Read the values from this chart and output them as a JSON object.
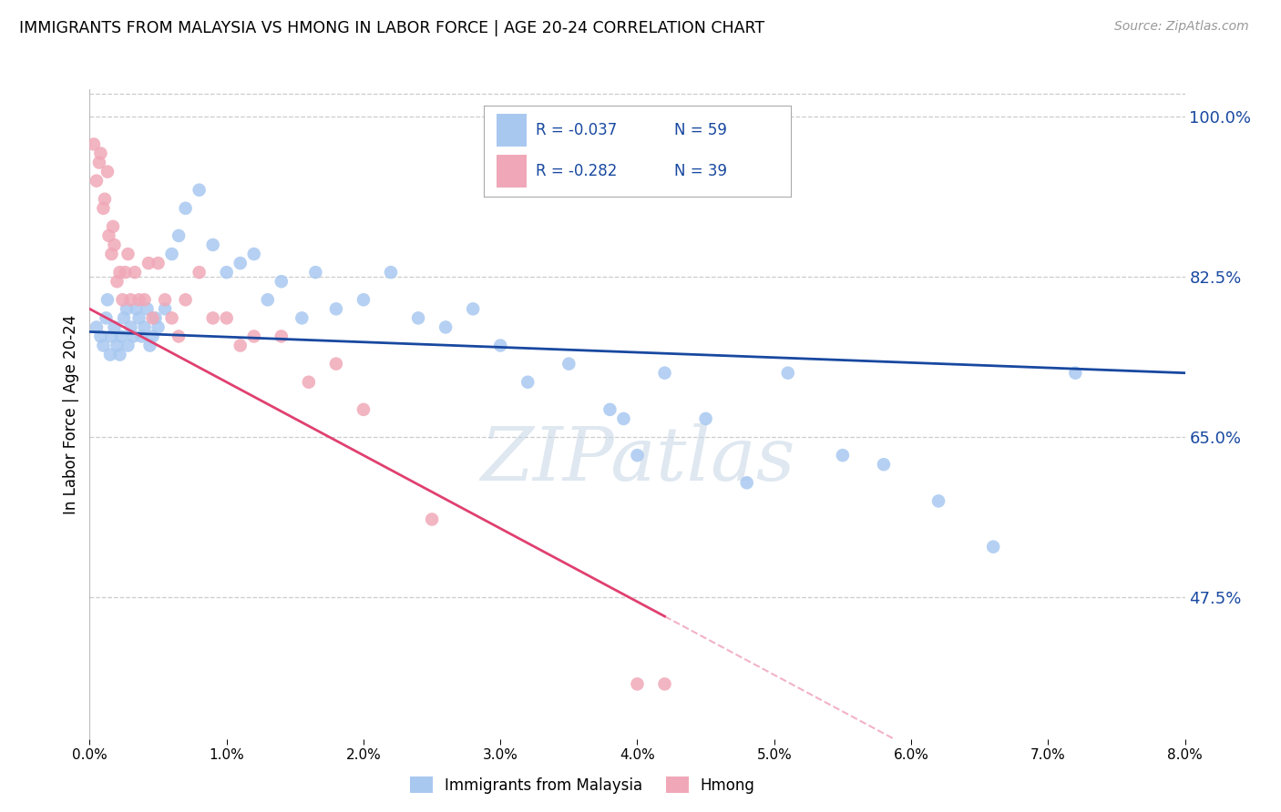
{
  "title": "IMMIGRANTS FROM MALAYSIA VS HMONG IN LABOR FORCE | AGE 20-24 CORRELATION CHART",
  "source": "Source: ZipAtlas.com",
  "ylabel": "In Labor Force | Age 20-24",
  "xmin": 0.0,
  "xmax": 8.0,
  "ymin": 32.0,
  "ymax": 103.0,
  "yticks": [
    47.5,
    65.0,
    82.5,
    100.0
  ],
  "xtick_vals": [
    0.0,
    1.0,
    2.0,
    3.0,
    4.0,
    5.0,
    6.0,
    7.0,
    8.0
  ],
  "blue_scatter": "#A8C8F0",
  "pink_scatter": "#F0A8B8",
  "blue_line": "#1848A0",
  "pink_line": "#E04070",
  "watermark_text": "ZIPatlas",
  "malaysia_x": [
    0.05,
    0.08,
    0.1,
    0.12,
    0.13,
    0.15,
    0.16,
    0.18,
    0.2,
    0.22,
    0.23,
    0.25,
    0.27,
    0.28,
    0.3,
    0.32,
    0.34,
    0.36,
    0.38,
    0.4,
    0.42,
    0.44,
    0.46,
    0.48,
    0.5,
    0.55,
    0.6,
    0.65,
    0.7,
    0.8,
    0.9,
    1.0,
    1.1,
    1.2,
    1.3,
    1.4,
    1.55,
    1.65,
    1.8,
    2.0,
    2.2,
    2.4,
    2.6,
    2.8,
    3.0,
    3.2,
    3.5,
    3.8,
    3.9,
    4.0,
    4.2,
    4.5,
    4.8,
    5.1,
    5.5,
    5.8,
    6.2,
    6.6,
    7.2
  ],
  "malaysia_y": [
    77.0,
    76.0,
    75.0,
    78.0,
    80.0,
    74.0,
    76.0,
    77.0,
    75.0,
    74.0,
    76.0,
    78.0,
    79.0,
    75.0,
    77.0,
    76.0,
    79.0,
    78.0,
    76.0,
    77.0,
    79.0,
    75.0,
    76.0,
    78.0,
    77.0,
    79.0,
    85.0,
    87.0,
    90.0,
    92.0,
    86.0,
    83.0,
    84.0,
    85.0,
    80.0,
    82.0,
    78.0,
    83.0,
    79.0,
    80.0,
    83.0,
    78.0,
    77.0,
    79.0,
    75.0,
    71.0,
    73.0,
    68.0,
    67.0,
    63.0,
    72.0,
    67.0,
    60.0,
    72.0,
    63.0,
    62.0,
    58.0,
    53.0,
    72.0
  ],
  "hmong_x": [
    0.03,
    0.05,
    0.07,
    0.08,
    0.1,
    0.11,
    0.13,
    0.14,
    0.16,
    0.17,
    0.18,
    0.2,
    0.22,
    0.24,
    0.26,
    0.28,
    0.3,
    0.33,
    0.36,
    0.4,
    0.43,
    0.46,
    0.5,
    0.55,
    0.6,
    0.65,
    0.7,
    0.8,
    0.9,
    1.0,
    1.1,
    1.2,
    1.4,
    1.6,
    1.8,
    2.0,
    2.5,
    4.0,
    4.2
  ],
  "hmong_y": [
    97.0,
    93.0,
    95.0,
    96.0,
    90.0,
    91.0,
    94.0,
    87.0,
    85.0,
    88.0,
    86.0,
    82.0,
    83.0,
    80.0,
    83.0,
    85.0,
    80.0,
    83.0,
    80.0,
    80.0,
    84.0,
    78.0,
    84.0,
    80.0,
    78.0,
    76.0,
    80.0,
    83.0,
    78.0,
    78.0,
    75.0,
    76.0,
    76.0,
    71.0,
    73.0,
    68.0,
    56.0,
    38.0,
    38.0
  ]
}
